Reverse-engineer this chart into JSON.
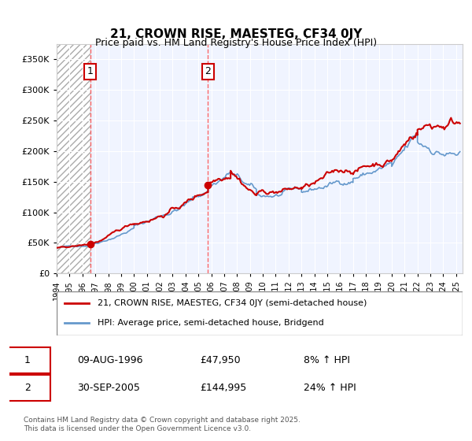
{
  "title": "21, CROWN RISE, MAESTEG, CF34 0JY",
  "subtitle": "Price paid vs. HM Land Registry's House Price Index (HPI)",
  "legend_line1": "21, CROWN RISE, MAESTEG, CF34 0JY (semi-detached house)",
  "legend_line2": "HPI: Average price, semi-detached house, Bridgend",
  "annotation1_label": "1",
  "annotation1_date": "09-AUG-1996",
  "annotation1_price": "£47,950",
  "annotation1_hpi": "8% ↑ HPI",
  "annotation2_label": "2",
  "annotation2_date": "30-SEP-2005",
  "annotation2_price": "£144,995",
  "annotation2_hpi": "24% ↑ HPI",
  "footer": "Contains HM Land Registry data © Crown copyright and database right 2025.\nThis data is licensed under the Open Government Licence v3.0.",
  "price_color": "#cc0000",
  "hpi_color": "#6699cc",
  "annotation_vline_color": "#ff4444",
  "background_plot": "#f0f4ff",
  "background_hatch": "#e8e8e8",
  "ylim": [
    0,
    375000
  ],
  "yticks": [
    0,
    50000,
    100000,
    150000,
    200000,
    250000,
    300000,
    350000
  ],
  "xlim_start": 1994.0,
  "xlim_end": 2025.5,
  "hatch_end": 1996.6,
  "sale1_x": 1996.6,
  "sale1_y": 47950,
  "sale2_x": 2005.75,
  "sale2_y": 144995
}
